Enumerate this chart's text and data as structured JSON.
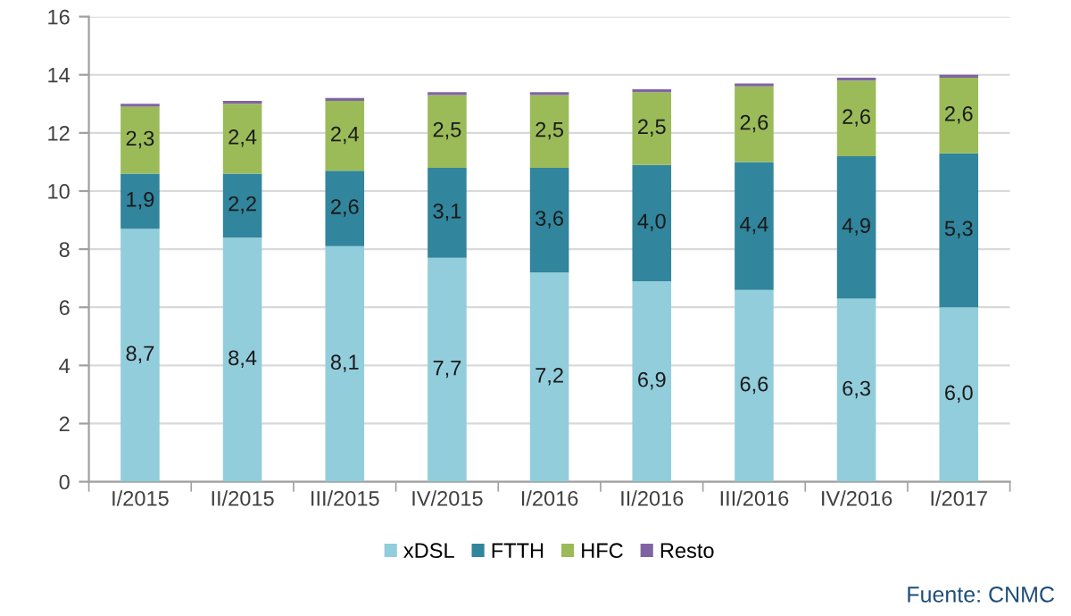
{
  "chart_data": {
    "type": "bar",
    "stacked": true,
    "categories": [
      "I/2015",
      "II/2015",
      "III/2015",
      "IV/2015",
      "I/2016",
      "II/2016",
      "III/2016",
      "IV/2016",
      "I/2017"
    ],
    "series": [
      {
        "name": "xDSL",
        "color": "#92cddc",
        "values": [
          8.7,
          8.4,
          8.1,
          7.7,
          7.2,
          6.9,
          6.6,
          6.3,
          6.0
        ],
        "value_labels": [
          "8,7",
          "8,4",
          "8,1",
          "7,7",
          "7,2",
          "6,9",
          "6,6",
          "6,3",
          "6,0"
        ]
      },
      {
        "name": "FTTH",
        "color": "#31859c",
        "values": [
          1.9,
          2.2,
          2.6,
          3.1,
          3.6,
          4.0,
          4.4,
          4.9,
          5.3
        ],
        "value_labels": [
          "1,9",
          "2,2",
          "2,6",
          "3,1",
          "3,6",
          "4,0",
          "4,4",
          "4,9",
          "5,3"
        ]
      },
      {
        "name": "HFC",
        "color": "#9bbb59",
        "values": [
          2.3,
          2.4,
          2.4,
          2.5,
          2.5,
          2.5,
          2.6,
          2.6,
          2.6
        ],
        "value_labels": [
          "2,3",
          "2,4",
          "2,4",
          "2,5",
          "2,5",
          "2,5",
          "2,6",
          "2,6",
          "2,6"
        ]
      },
      {
        "name": "Resto",
        "color": "#8064a2",
        "values": [
          0.1,
          0.1,
          0.1,
          0.1,
          0.1,
          0.1,
          0.1,
          0.1,
          0.1
        ]
      }
    ],
    "ylim": [
      0,
      16
    ],
    "yticks": [
      0,
      2,
      4,
      6,
      8,
      10,
      12,
      14,
      16
    ],
    "grid": "y",
    "legend": "bottom",
    "annotations": [
      "Fuente: CNMC"
    ]
  }
}
